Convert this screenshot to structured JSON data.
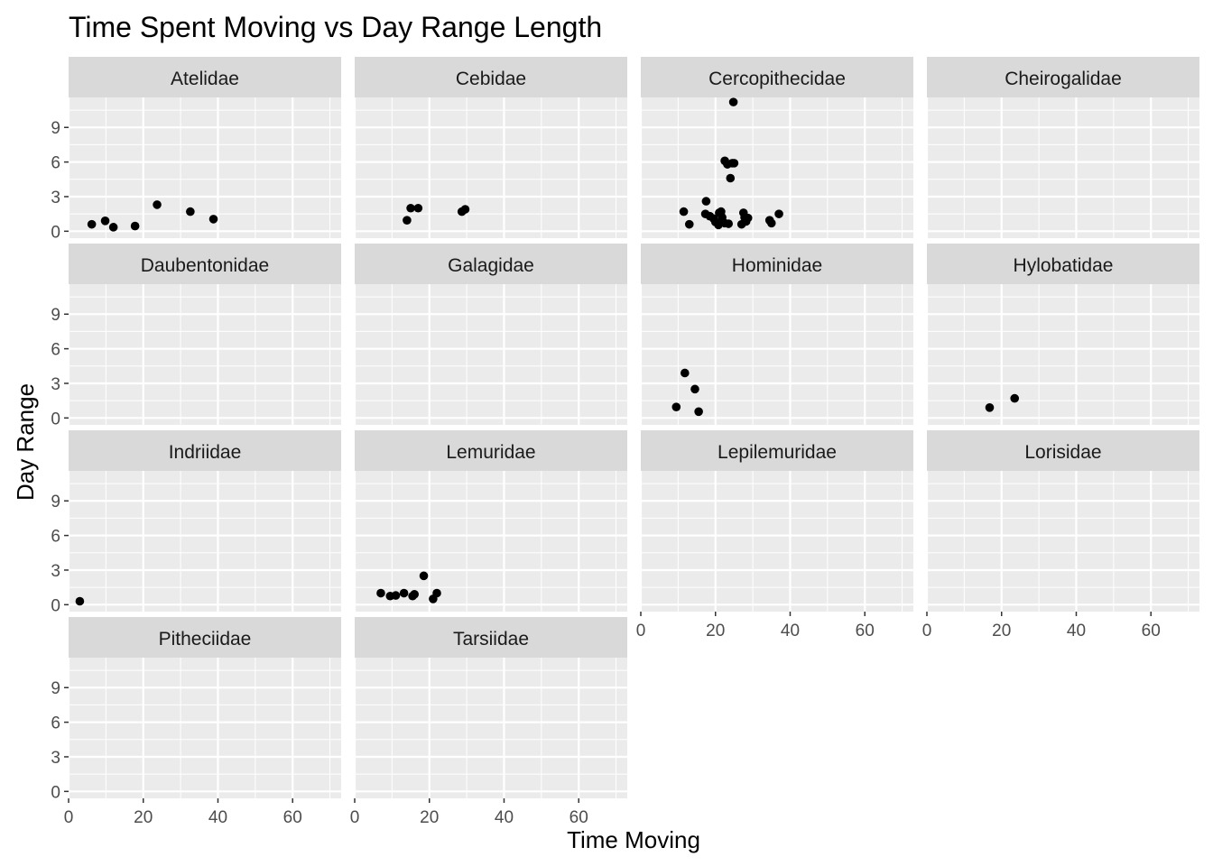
{
  "chart_data": {
    "type": "scatter",
    "title": "Time Spent Moving vs Day Range Length",
    "xlabel": "Time Moving",
    "ylabel": "Day Range",
    "xlim": [
      0,
      73
    ],
    "ylim": [
      -0.6,
      11.6
    ],
    "x_ticks": [
      0,
      20,
      40,
      60
    ],
    "y_ticks": [
      0,
      3,
      6,
      9
    ],
    "grid": true,
    "layout": "facet_wrap",
    "ncol": 4,
    "colors": {
      "panel_bg": "#ebebeb",
      "grid_major": "#ffffff",
      "strip_bg": "#d9d9d9",
      "point": "#000000",
      "tick_text": "#4d4d4d"
    },
    "facets": [
      {
        "name": "Atelidae",
        "points": [
          [
            6.2,
            0.6
          ],
          [
            9.8,
            0.9
          ],
          [
            12,
            0.35
          ],
          [
            17.8,
            0.45
          ],
          [
            23.7,
            2.3
          ],
          [
            32.6,
            1.7
          ],
          [
            38.8,
            1.05
          ]
        ]
      },
      {
        "name": "Cebidae",
        "points": [
          [
            14,
            0.95
          ],
          [
            15,
            2
          ],
          [
            17,
            2
          ],
          [
            28.7,
            1.7
          ],
          [
            29.6,
            1.9
          ]
        ]
      },
      {
        "name": "Cercopithecidae",
        "points": [
          [
            24.8,
            11.2
          ],
          [
            22.5,
            6.1
          ],
          [
            23.2,
            5.8
          ],
          [
            24.5,
            5.9
          ],
          [
            25,
            5.9
          ],
          [
            24,
            4.6
          ],
          [
            17.5,
            2.6
          ],
          [
            11.5,
            1.7
          ],
          [
            13,
            0.6
          ],
          [
            17.3,
            1.5
          ],
          [
            18.5,
            1.3
          ],
          [
            19.5,
            1.1
          ],
          [
            20,
            0.8
          ],
          [
            20.8,
            0.55
          ],
          [
            21,
            1.6
          ],
          [
            21.5,
            1.7
          ],
          [
            21.8,
            1.2
          ],
          [
            22.5,
            0.7
          ],
          [
            23.5,
            0.65
          ],
          [
            27,
            0.6
          ],
          [
            27.5,
            1.6
          ],
          [
            27.8,
            1.2
          ],
          [
            28.2,
            0.85
          ],
          [
            28.7,
            1.15
          ],
          [
            34.5,
            0.95
          ],
          [
            35,
            0.7
          ],
          [
            37,
            1.5
          ]
        ]
      },
      {
        "name": "Cheirogalidae",
        "points": []
      },
      {
        "name": "Daubentonidae",
        "points": []
      },
      {
        "name": "Galagidae",
        "points": []
      },
      {
        "name": "Hominidae",
        "points": [
          [
            9.5,
            0.95
          ],
          [
            11.8,
            3.9
          ],
          [
            14.5,
            2.5
          ],
          [
            15.5,
            0.55
          ]
        ]
      },
      {
        "name": "Hylobatidae",
        "points": [
          [
            16.8,
            0.9
          ],
          [
            23.5,
            1.7
          ]
        ]
      },
      {
        "name": "Indriidae",
        "points": [
          [
            3,
            0.3
          ]
        ]
      },
      {
        "name": "Lemuridae",
        "points": [
          [
            7,
            1
          ],
          [
            9.5,
            0.75
          ],
          [
            11,
            0.8
          ],
          [
            13.2,
            1
          ],
          [
            15.5,
            0.75
          ],
          [
            16,
            0.9
          ],
          [
            18.5,
            2.5
          ],
          [
            21,
            0.5
          ],
          [
            22,
            1
          ]
        ]
      },
      {
        "name": "Lepilemuridae",
        "points": []
      },
      {
        "name": "Lorisidae",
        "points": []
      },
      {
        "name": "Pitheciidae",
        "points": []
      },
      {
        "name": "Tarsiidae",
        "points": []
      }
    ],
    "x_axis_shown_under": [
      "Lepilemuridae",
      "Lorisidae",
      "Pitheciidae",
      "Tarsiidae"
    ],
    "y_axis_shown_on": [
      "Atelidae",
      "Daubentonidae",
      "Indriidae",
      "Pitheciidae"
    ]
  }
}
